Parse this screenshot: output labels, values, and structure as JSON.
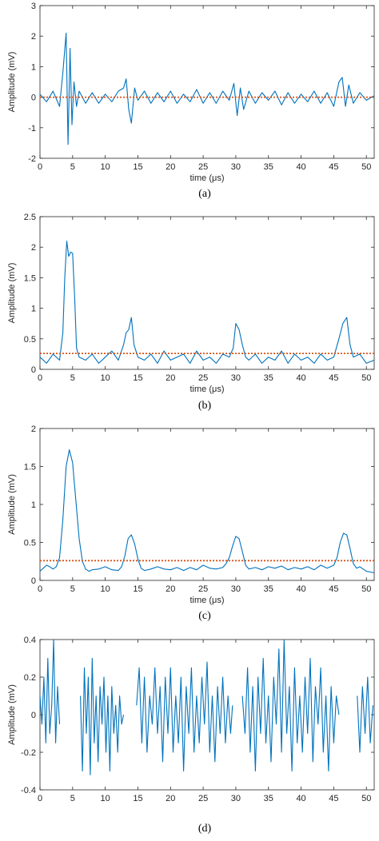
{
  "figure": {
    "panels": [
      {
        "caption": "(a)",
        "xlabel": "time (μs)",
        "ylabel": "Amplitude (mV)"
      },
      {
        "caption": "(b)",
        "xlabel": "time (μs)",
        "ylabel": "Amplitude (mV)"
      },
      {
        "caption": "(c)",
        "xlabel": "time (μs)",
        "ylabel": "Amplitude (mV)"
      },
      {
        "caption": "(d)",
        "xlabel": "",
        "ylabel": "Amplitude (mV)"
      }
    ]
  },
  "chart_data": [
    {
      "type": "line",
      "title": "",
      "caption": "(a)",
      "xlabel": "time (μs)",
      "ylabel": "Amplitude (mV)",
      "xlim": [
        0,
        51.2
      ],
      "ylim": [
        -2,
        3
      ],
      "xticks": [
        0,
        5,
        10,
        15,
        20,
        25,
        30,
        35,
        40,
        45,
        50
      ],
      "yticks": [
        -2,
        -1,
        0,
        1,
        2,
        3
      ],
      "grid": false,
      "series": [
        {
          "color": "#0072BD",
          "style": "solid",
          "x": [
            0,
            1,
            2,
            3,
            3.5,
            4,
            4.3,
            4.6,
            4.9,
            5.2,
            5.6,
            6,
            7,
            8,
            9,
            10,
            11,
            12,
            12.8,
            13.2,
            13.6,
            14,
            14.5,
            15,
            16,
            17,
            18,
            19,
            20,
            21,
            22,
            23,
            24,
            25,
            26,
            27,
            28,
            29,
            29.7,
            30.2,
            30.7,
            31.2,
            32,
            33,
            34,
            35,
            36,
            37,
            38,
            39,
            40,
            41,
            42,
            43,
            44,
            45,
            45.8,
            46.3,
            46.8,
            47.3,
            48,
            49,
            50,
            51.2
          ],
          "y": [
            0.1,
            -0.15,
            0.2,
            -0.3,
            0.8,
            2.1,
            -1.55,
            1.6,
            -0.9,
            0.5,
            -0.3,
            0.2,
            -0.2,
            0.15,
            -0.2,
            0.1,
            -0.15,
            0.2,
            0.3,
            0.6,
            -0.4,
            -0.85,
            0.3,
            -0.1,
            0.2,
            -0.2,
            0.15,
            -0.15,
            0.2,
            -0.2,
            0.1,
            -0.15,
            0.25,
            -0.2,
            0.15,
            -0.2,
            0.2,
            -0.1,
            0.45,
            -0.6,
            0.3,
            -0.4,
            0.2,
            -0.2,
            0.15,
            -0.1,
            0.2,
            -0.25,
            0.15,
            -0.2,
            0.1,
            -0.15,
            0.2,
            -0.2,
            0.15,
            -0.3,
            0.5,
            0.65,
            -0.3,
            0.4,
            -0.2,
            0.15,
            -0.1,
            0.05
          ]
        },
        {
          "color": "#D95319",
          "style": "dotted",
          "x": [
            0,
            51.2
          ],
          "y": [
            0,
            0
          ]
        }
      ]
    },
    {
      "type": "line",
      "title": "",
      "caption": "(b)",
      "xlabel": "time (μs)",
      "ylabel": "Amplitude (mV)",
      "xlim": [
        0,
        51.2
      ],
      "ylim": [
        0,
        2.5
      ],
      "xticks": [
        0,
        5,
        10,
        15,
        20,
        25,
        30,
        35,
        40,
        45,
        50
      ],
      "yticks": [
        0,
        0.5,
        1,
        1.5,
        2,
        2.5
      ],
      "grid": false,
      "series": [
        {
          "color": "#0072BD",
          "style": "solid",
          "x": [
            0,
            1,
            2,
            3,
            3.5,
            3.8,
            4.1,
            4.4,
            4.7,
            5.0,
            5.3,
            5.6,
            6,
            7,
            8,
            9,
            10,
            11,
            12,
            12.8,
            13.2,
            13.6,
            14,
            14.4,
            15,
            16,
            17,
            18,
            19,
            20,
            21,
            22,
            23,
            24,
            25,
            26,
            27,
            28,
            29,
            29.6,
            30,
            30.5,
            31,
            31.5,
            32,
            33,
            34,
            35,
            36,
            37,
            38,
            39,
            40,
            41,
            42,
            43,
            44,
            45,
            45.8,
            46.4,
            47,
            47.5,
            48,
            49,
            50,
            51.2
          ],
          "y": [
            0.2,
            0.1,
            0.25,
            0.15,
            0.6,
            1.5,
            2.1,
            1.85,
            1.92,
            1.9,
            1.2,
            0.35,
            0.2,
            0.15,
            0.25,
            0.1,
            0.2,
            0.3,
            0.15,
            0.4,
            0.6,
            0.65,
            0.85,
            0.4,
            0.2,
            0.15,
            0.25,
            0.1,
            0.3,
            0.15,
            0.2,
            0.25,
            0.1,
            0.3,
            0.15,
            0.2,
            0.1,
            0.25,
            0.2,
            0.35,
            0.75,
            0.65,
            0.4,
            0.2,
            0.15,
            0.25,
            0.1,
            0.2,
            0.15,
            0.3,
            0.1,
            0.25,
            0.15,
            0.2,
            0.1,
            0.25,
            0.15,
            0.2,
            0.5,
            0.75,
            0.85,
            0.4,
            0.2,
            0.25,
            0.1,
            0.15
          ]
        },
        {
          "color": "#D95319",
          "style": "dotted",
          "x": [
            0,
            51.2
          ],
          "y": [
            0.26,
            0.26
          ]
        }
      ]
    },
    {
      "type": "line",
      "title": "",
      "caption": "(c)",
      "xlabel": "time (μs)",
      "ylabel": "Amplitude (mV)",
      "xlim": [
        0,
        51.2
      ],
      "ylim": [
        0,
        2
      ],
      "xticks": [
        0,
        5,
        10,
        15,
        20,
        25,
        30,
        35,
        40,
        45,
        50
      ],
      "yticks": [
        0,
        0.5,
        1,
        1.5,
        2
      ],
      "grid": false,
      "series": [
        {
          "color": "#0072BD",
          "style": "solid",
          "x": [
            0,
            0.5,
            1,
            1.5,
            2,
            2.5,
            3,
            3.5,
            4,
            4.5,
            5,
            5.5,
            6,
            6.5,
            7,
            7.5,
            8,
            9,
            10,
            11,
            12,
            12.5,
            13,
            13.5,
            14,
            14.5,
            15,
            15.5,
            16,
            17,
            18,
            19,
            20,
            21,
            22,
            23,
            24,
            25,
            26,
            27,
            28,
            28.5,
            29,
            29.5,
            30,
            30.5,
            31,
            31.5,
            32,
            33,
            34,
            35,
            36,
            37,
            38,
            39,
            40,
            41,
            42,
            43,
            44,
            45,
            45.5,
            46,
            46.5,
            47,
            47.5,
            48,
            48.5,
            49,
            50,
            51.2
          ],
          "y": [
            0.12,
            0.16,
            0.2,
            0.18,
            0.15,
            0.18,
            0.3,
            0.8,
            1.5,
            1.72,
            1.55,
            1.05,
            0.55,
            0.25,
            0.15,
            0.12,
            0.14,
            0.15,
            0.18,
            0.14,
            0.13,
            0.18,
            0.32,
            0.55,
            0.6,
            0.48,
            0.28,
            0.16,
            0.13,
            0.15,
            0.18,
            0.15,
            0.14,
            0.17,
            0.13,
            0.17,
            0.14,
            0.2,
            0.16,
            0.15,
            0.17,
            0.22,
            0.3,
            0.45,
            0.58,
            0.55,
            0.38,
            0.2,
            0.15,
            0.17,
            0.14,
            0.18,
            0.16,
            0.19,
            0.14,
            0.17,
            0.15,
            0.18,
            0.14,
            0.2,
            0.16,
            0.2,
            0.3,
            0.5,
            0.62,
            0.6,
            0.42,
            0.22,
            0.16,
            0.18,
            0.12,
            0.1
          ]
        },
        {
          "color": "#D95319",
          "style": "dotted",
          "x": [
            0,
            51.2
          ],
          "y": [
            0.26,
            0.26
          ]
        }
      ]
    },
    {
      "type": "line",
      "title": "",
      "caption": "(d)",
      "xlabel": "",
      "ylabel": "Amplitude (mV)",
      "xlim": [
        0,
        51.2
      ],
      "ylim": [
        -0.4,
        0.4
      ],
      "xticks": [
        0,
        5,
        10,
        15,
        20,
        25,
        30,
        35,
        40,
        45,
        50
      ],
      "yticks": [
        -0.4,
        -0.2,
        0,
        0.2,
        0.4
      ],
      "grid": false,
      "series": [
        {
          "color": "#0072BD",
          "style": "solid",
          "segments": [
            {
              "x": [
                0,
                0.3,
                0.6,
                0.9,
                1.2,
                1.5,
                1.8,
                2.1,
                2.4,
                2.7,
                3.0
              ],
              "y": [
                0.1,
                -0.05,
                0.2,
                -0.15,
                0.3,
                -0.1,
                0.05,
                0.4,
                -0.15,
                0.15,
                -0.05
              ]
            },
            {
              "x": [
                6.2,
                6.5,
                6.8,
                7.1,
                7.4,
                7.7,
                8.0,
                8.3,
                8.6,
                8.9,
                9.2,
                9.5,
                9.8,
                10.1,
                10.4,
                10.7,
                11.0,
                11.3,
                11.6,
                11.9,
                12.2,
                12.5,
                12.8
              ],
              "y": [
                0.1,
                -0.3,
                0.25,
                -0.1,
                0.2,
                -0.32,
                0.3,
                -0.15,
                0.1,
                -0.25,
                0.15,
                -0.05,
                0.2,
                -0.2,
                0.1,
                -0.3,
                0.15,
                -0.1,
                0.05,
                -0.2,
                0.1,
                -0.05,
                0.0
              ]
            },
            {
              "x": [
                14.8,
                15.2,
                15.6,
                16.0,
                16.4,
                16.8,
                17.2,
                17.6,
                18.0,
                18.4,
                18.8,
                19.2,
                19.6,
                20.0,
                20.4,
                20.8,
                21.2,
                21.6,
                22.0,
                22.4,
                22.8,
                23.2,
                23.6,
                24.0,
                24.4,
                24.8,
                25.2,
                25.6,
                26.0,
                26.4,
                26.8,
                27.2,
                27.6,
                28.0,
                28.4,
                28.8,
                29.2,
                29.5
              ],
              "y": [
                0.05,
                0.25,
                -0.15,
                0.2,
                -0.2,
                0.1,
                -0.05,
                0.25,
                -0.1,
                0.15,
                -0.25,
                0.2,
                -0.1,
                0.25,
                -0.2,
                0.1,
                -0.15,
                0.2,
                -0.3,
                0.15,
                -0.1,
                0.25,
                -0.2,
                0.1,
                -0.15,
                0.2,
                -0.05,
                0.28,
                -0.2,
                0.1,
                -0.25,
                0.15,
                -0.1,
                0.2,
                -0.15,
                0.1,
                -0.1,
                0.05
              ]
            },
            {
              "x": [
                31.0,
                31.4,
                31.8,
                32.2,
                32.6,
                33.0,
                33.4,
                33.8,
                34.2,
                34.6,
                35.0,
                35.4,
                35.8,
                36.2,
                36.6,
                37.0,
                37.4,
                37.8,
                38.2,
                38.6,
                39.0,
                39.4,
                39.8,
                40.2,
                40.6,
                41.0,
                41.4,
                41.8,
                42.2,
                42.6,
                43.0,
                43.4,
                43.8,
                44.2,
                44.6,
                45.0,
                45.4,
                45.8
              ],
              "y": [
                0.1,
                -0.1,
                0.25,
                -0.2,
                0.15,
                -0.3,
                0.2,
                -0.1,
                0.3,
                -0.15,
                0.1,
                -0.25,
                0.2,
                -0.05,
                0.35,
                -0.2,
                0.4,
                -0.1,
                0.15,
                -0.3,
                0.25,
                -0.15,
                0.1,
                -0.2,
                0.2,
                -0.1,
                0.3,
                -0.25,
                0.15,
                -0.05,
                0.25,
                -0.2,
                0.1,
                -0.3,
                0.15,
                -0.15,
                0.1,
                0.0
              ]
            },
            {
              "x": [
                48.6,
                49.0,
                49.4,
                49.8,
                50.2,
                50.6,
                51.0
              ],
              "y": [
                0.1,
                -0.2,
                0.15,
                -0.1,
                0.2,
                -0.15,
                0.05
              ]
            }
          ]
        }
      ]
    }
  ]
}
